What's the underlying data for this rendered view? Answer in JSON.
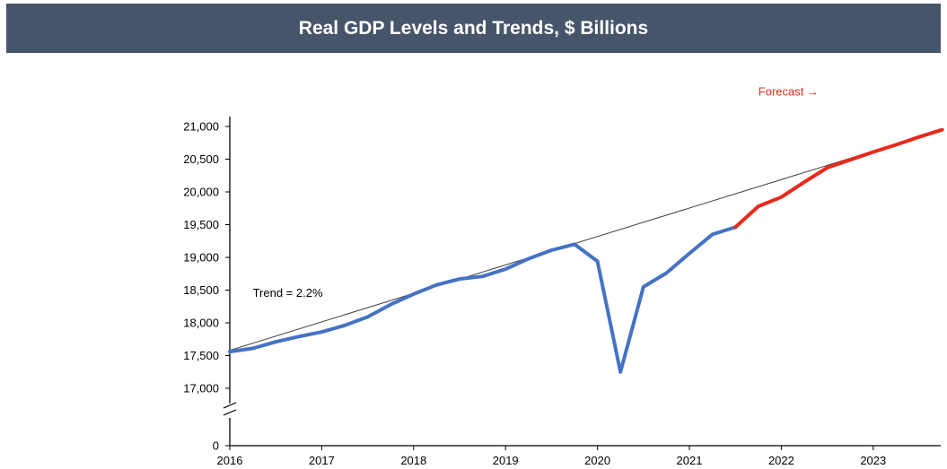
{
  "header": {
    "title": "Real GDP Levels and Trends, $ Billions"
  },
  "chart_data": {
    "type": "line",
    "title": "Real GDP Levels and Trends, $ Billions",
    "xlabel": "",
    "ylabel": "",
    "x_tick_labels": [
      "2016",
      "2017",
      "2018",
      "2019",
      "2020",
      "2021",
      "2022",
      "2023"
    ],
    "y_tick_labels": [
      "0",
      "17,000",
      "17,500",
      "18,000",
      "18,500",
      "19,000",
      "19,500",
      "20,000",
      "20,500",
      "21,000"
    ],
    "y_ticks": [
      0,
      17000,
      17500,
      18000,
      18500,
      19000,
      19500,
      20000,
      20500,
      21000
    ],
    "ylim": [
      0,
      21000
    ],
    "axis_break": true,
    "grid": false,
    "series": [
      {
        "role": "actual",
        "color": "#4472c4",
        "points": [
          [
            "2016-01",
            17560
          ],
          [
            "2016-04",
            17610
          ],
          [
            "2016-07",
            17710
          ],
          [
            "2016-10",
            17790
          ],
          [
            "2017-01",
            17860
          ],
          [
            "2017-04",
            17960
          ],
          [
            "2017-07",
            18090
          ],
          [
            "2017-10",
            18280
          ],
          [
            "2018-01",
            18440
          ],
          [
            "2018-04",
            18580
          ],
          [
            "2018-07",
            18670
          ],
          [
            "2018-10",
            18710
          ],
          [
            "2019-01",
            18820
          ],
          [
            "2019-04",
            18980
          ],
          [
            "2019-07",
            19110
          ],
          [
            "2019-10",
            19200
          ],
          [
            "2020-01",
            18940
          ],
          [
            "2020-04",
            17250
          ],
          [
            "2020-07",
            18550
          ],
          [
            "2020-10",
            18760
          ],
          [
            "2021-01",
            19060
          ],
          [
            "2021-04",
            19350
          ],
          [
            "2021-07",
            19460
          ]
        ]
      },
      {
        "role": "forecast",
        "color": "#e8291c",
        "points": [
          [
            "2021-07",
            19460
          ],
          [
            "2021-10",
            19780
          ],
          [
            "2022-01",
            19920
          ],
          [
            "2022-04",
            20150
          ],
          [
            "2022-07",
            20370
          ],
          [
            "2022-10",
            20490
          ],
          [
            "2023-01",
            20610
          ],
          [
            "2023-04",
            20720
          ],
          [
            "2023-07",
            20840
          ],
          [
            "2023-10",
            20950
          ]
        ]
      },
      {
        "role": "trend",
        "color": "#404040",
        "points": [
          [
            "2016-01",
            17580
          ],
          [
            "2023-10",
            20950
          ]
        ]
      }
    ],
    "annotations": [
      {
        "text": "Trend = 2.2%",
        "color": "#000000",
        "at": [
          "2016-04",
          18450
        ]
      },
      {
        "text": "Forecast →",
        "color": "#e8291c",
        "at": [
          "2021-10",
          21530
        ]
      }
    ]
  }
}
